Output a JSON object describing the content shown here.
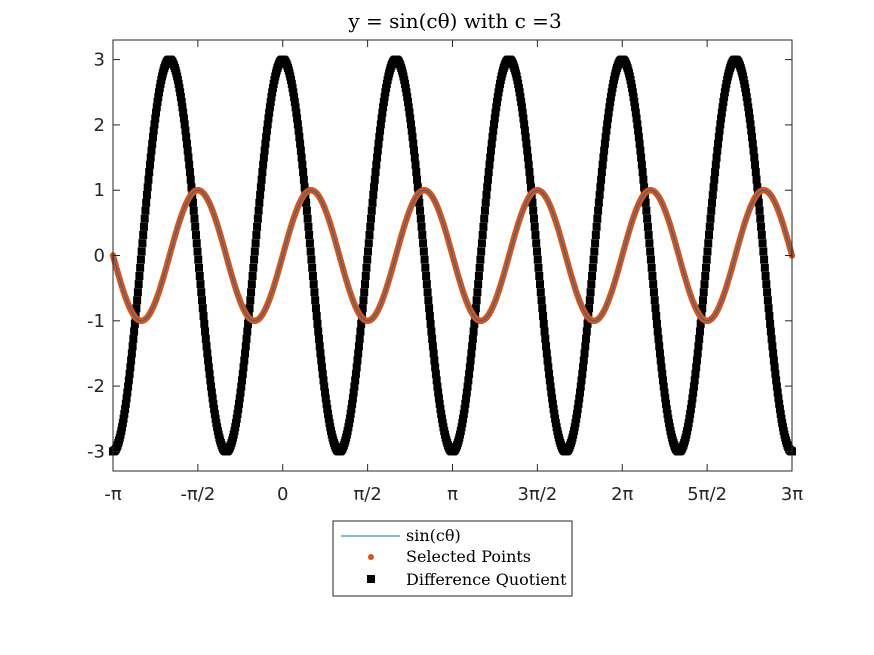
{
  "chart_data": {
    "type": "line",
    "title": "y = sin(cθ) with c =3",
    "c": 3,
    "xlim": [
      -3.14159265,
      9.42477796
    ],
    "ylim": [
      -3.3,
      3.3
    ],
    "x_ticks": [
      {
        "value": -3.14159265,
        "label": "-π"
      },
      {
        "value": -1.57079633,
        "label": "-π/2"
      },
      {
        "value": 0,
        "label": "0"
      },
      {
        "value": 1.57079633,
        "label": "π/2"
      },
      {
        "value": 3.14159265,
        "label": "π"
      },
      {
        "value": 4.71238898,
        "label": "3π/2"
      },
      {
        "value": 6.28318531,
        "label": "2π"
      },
      {
        "value": 7.85398163,
        "label": "5π/2"
      },
      {
        "value": 9.42477796,
        "label": "3π"
      }
    ],
    "y_ticks": [
      {
        "value": 3,
        "label": "3"
      },
      {
        "value": 2,
        "label": "2"
      },
      {
        "value": 1,
        "label": "1"
      },
      {
        "value": 0,
        "label": "0"
      },
      {
        "value": -1,
        "label": "-1"
      },
      {
        "value": -2,
        "label": "-2"
      },
      {
        "value": -3,
        "label": "-3"
      }
    ],
    "grid": false,
    "legend_position": "bottom-center-outside",
    "series": [
      {
        "name": "sin(cθ)",
        "function": "sin(c*x)",
        "style": "line",
        "color": "#0072BD"
      },
      {
        "name": "Selected Points",
        "function": "sin(c*x)",
        "style": "dots",
        "color": "#D95319"
      },
      {
        "name": "Difference Quotient",
        "function": "c*cos(c*x)",
        "style": "squares",
        "color": "#000000"
      }
    ]
  }
}
